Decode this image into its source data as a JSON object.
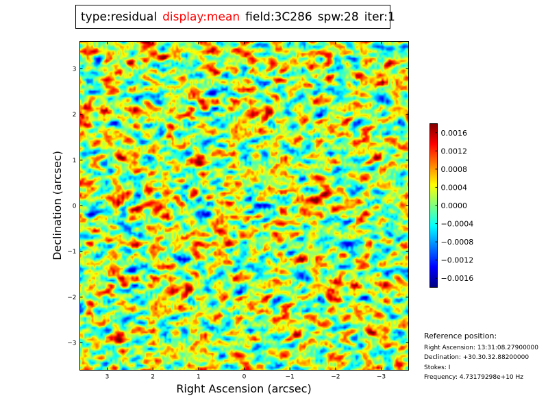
{
  "header": {
    "type": "type:residual",
    "display": "display:mean",
    "field": "field:3C286",
    "spw": "spw:28",
    "iter": "iter:1"
  },
  "chart_data": {
    "type": "heatmap",
    "xlabel": "Right Ascension (arcsec)",
    "ylabel": "Declination (arcsec)",
    "xlim": [
      3.6,
      -3.6
    ],
    "ylim": [
      -3.6,
      3.6
    ],
    "x_ticks": [
      3,
      2,
      1,
      0,
      -1,
      -2,
      -3
    ],
    "x_tick_labels": [
      "3",
      "2",
      "1",
      "0",
      "−1",
      "−2",
      "−3"
    ],
    "y_ticks": [
      3,
      2,
      1,
      0,
      -1,
      -2,
      -3
    ],
    "y_tick_labels": [
      "3",
      "2",
      "1",
      "0",
      "−1",
      "−2",
      "−3"
    ],
    "colormap": "jet",
    "colorbar_range": [
      -0.0018,
      0.0018
    ],
    "colorbar_ticks": [
      0.0016,
      0.0012,
      0.0008,
      0.0004,
      0.0,
      -0.0004,
      -0.0008,
      -0.0012,
      -0.0016
    ],
    "colorbar_labels": [
      "0.0016",
      "0.0012",
      "0.0008",
      "0.0004",
      "0.0000",
      "−0.0004",
      "−0.0008",
      "−0.0012",
      "−0.0016"
    ],
    "colors": {
      "jet": [
        "#00007f",
        "#0000ff",
        "#007fff",
        "#00ffff",
        "#7fff7f",
        "#ffff00",
        "#ff7f00",
        "#ff0000",
        "#7f0000"
      ],
      "frame": "#000000"
    }
  },
  "reference": {
    "heading": "Reference position:",
    "ra": "Right Ascension: 13:31:08.27900000",
    "dec": "Declination: +30.30.32.88200000",
    "stokes": "Stokes: I",
    "freq": "Frequency: 4.73179298e+10 Hz"
  }
}
